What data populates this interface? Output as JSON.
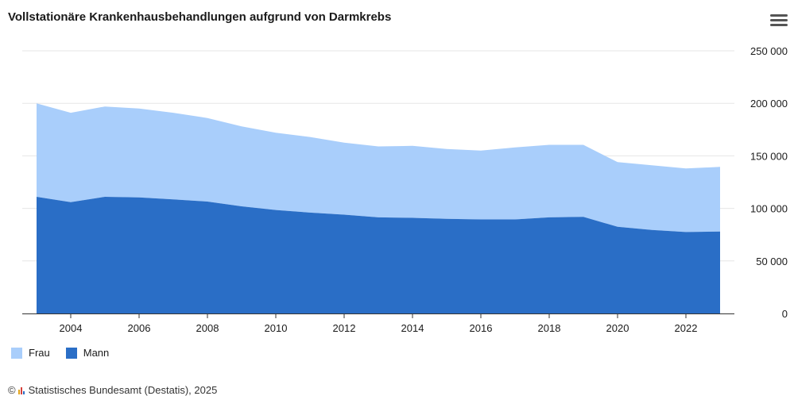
{
  "chart_data": {
    "type": "area",
    "stacked": true,
    "title": "Vollstationäre Krankenhausbehandlungen aufgrund von Darmkrebs",
    "x": [
      2003,
      2004,
      2005,
      2006,
      2007,
      2008,
      2009,
      2010,
      2011,
      2012,
      2013,
      2014,
      2015,
      2016,
      2017,
      2018,
      2019,
      2020,
      2021,
      2022,
      2023
    ],
    "x_tick_labels": [
      "2004",
      "2006",
      "2008",
      "2010",
      "2012",
      "2014",
      "2016",
      "2018",
      "2020",
      "2022"
    ],
    "y_tick_labels": [
      "0",
      "50 000",
      "100 000",
      "150 000",
      "200 000",
      "250 000"
    ],
    "ylim": [
      0,
      250000
    ],
    "y_axis_position": "right",
    "grid": true,
    "legend_position": "bottom-left",
    "series": [
      {
        "name": "Mann",
        "color": "#2a6ec6",
        "values": [
          111000,
          106000,
          111000,
          110500,
          108500,
          106500,
          102000,
          98500,
          96000,
          94000,
          91500,
          91000,
          90000,
          89500,
          89500,
          91500,
          92000,
          82500,
          79500,
          77500,
          78000
        ]
      },
      {
        "name": "Frau",
        "color": "#a9cefb",
        "values": [
          89000,
          85000,
          86000,
          84500,
          82500,
          79500,
          76000,
          73500,
          72000,
          68500,
          67500,
          68500,
          66500,
          65500,
          68500,
          69000,
          68500,
          61500,
          61500,
          60500,
          61500
        ]
      }
    ]
  },
  "menu_icon": "hamburger-menu-icon",
  "credit": {
    "copyright": "©",
    "text": "Statistisches Bundesamt (Destatis), 2025",
    "logo_icon": "destatis-logo-icon"
  }
}
